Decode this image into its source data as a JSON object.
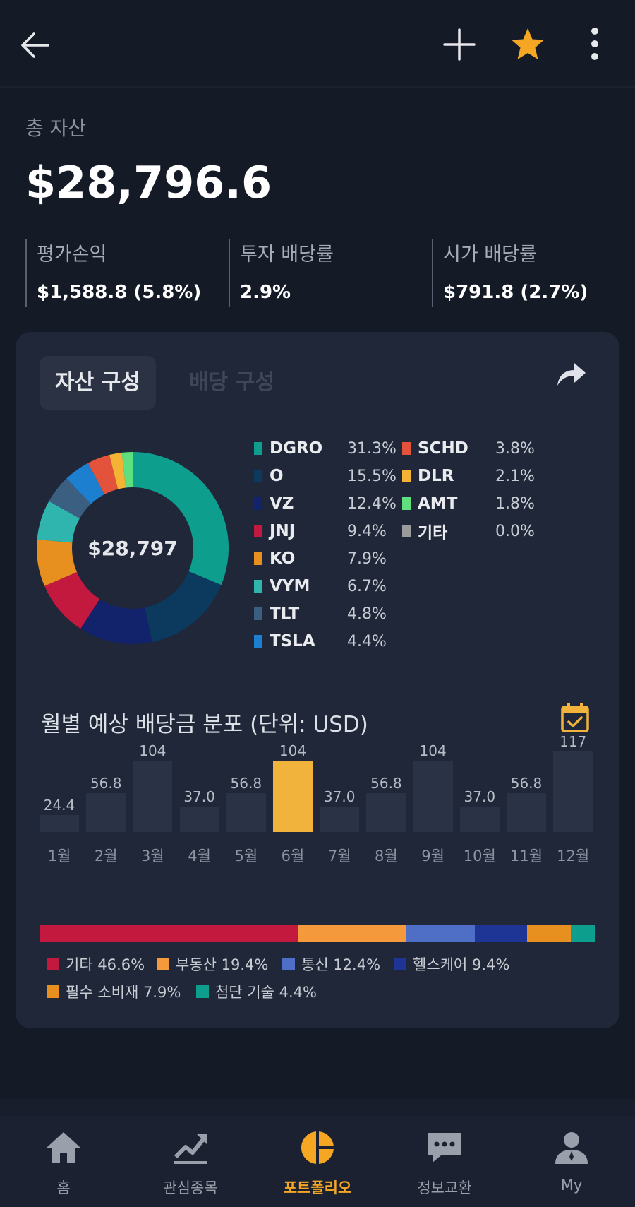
{
  "header": {
    "back_icon": "back-arrow-icon",
    "add_icon": "plus-icon",
    "favorite_icon": "star-icon",
    "more_icon": "more-vertical-icon",
    "star_color": "#f5a623"
  },
  "summary": {
    "total_label": "총 자산",
    "total_value": "$28,796.6",
    "metrics": [
      {
        "label": "평가손익",
        "value": "$1,588.8 (5.8%)"
      },
      {
        "label": "투자 배당률",
        "value": "2.9%"
      },
      {
        "label": "시가 배당률",
        "value": "$791.8 (2.7%)"
      }
    ]
  },
  "card": {
    "tabs": [
      {
        "label": "자산 구성",
        "active": true
      },
      {
        "label": "배당 구성",
        "active": false
      }
    ],
    "share_icon": "share-icon",
    "donut_center": "$28,797",
    "holdings": [
      {
        "name": "DGRO",
        "pct": "31.3%",
        "value": 31.3,
        "color": "#0d9e8e"
      },
      {
        "name": "O",
        "pct": "15.5%",
        "value": 15.5,
        "color": "#0b3a5e"
      },
      {
        "name": "VZ",
        "pct": "12.4%",
        "value": 12.4,
        "color": "#12226b"
      },
      {
        "name": "JNJ",
        "pct": "9.4%",
        "value": 9.4,
        "color": "#c4193f"
      },
      {
        "name": "KO",
        "pct": "7.9%",
        "value": 7.9,
        "color": "#e8901f"
      },
      {
        "name": "VYM",
        "pct": "6.7%",
        "value": 6.7,
        "color": "#2fb5ad"
      },
      {
        "name": "TLT",
        "pct": "4.8%",
        "value": 4.8,
        "color": "#3b5f80"
      },
      {
        "name": "TSLA",
        "pct": "4.4%",
        "value": 4.4,
        "color": "#1d7fd0"
      },
      {
        "name": "SCHD",
        "pct": "3.8%",
        "value": 3.8,
        "color": "#e3523a"
      },
      {
        "name": "DLR",
        "pct": "2.1%",
        "value": 2.1,
        "color": "#f4b334"
      },
      {
        "name": "AMT",
        "pct": "1.8%",
        "value": 1.8,
        "color": "#5ee07e"
      },
      {
        "name": "기타",
        "pct": "0.0%",
        "value": 0.0,
        "color": "#9b9b9b"
      }
    ]
  },
  "dividends": {
    "title": "월별 예상 배당금 분포 (단위: USD)",
    "calendar_icon": "calendar-check-icon",
    "highlight_color": "#f2b33c"
  },
  "chart_data": {
    "type": "bar",
    "categories": [
      "1월",
      "2월",
      "3월",
      "4월",
      "5월",
      "6월",
      "7월",
      "8월",
      "9월",
      "10월",
      "11월",
      "12월"
    ],
    "values": [
      24.4,
      56.8,
      104,
      37.0,
      56.8,
      104,
      37.0,
      56.8,
      104,
      37.0,
      56.8,
      117
    ],
    "labels": [
      "24.4",
      "56.8",
      "104",
      "37.0",
      "56.8",
      "104",
      "37.0",
      "56.8",
      "104",
      "37.0",
      "56.8",
      "117"
    ],
    "highlight_index": 5,
    "title": "",
    "ylim": [
      0,
      117
    ]
  },
  "sectors": [
    {
      "label": "기타 46.6%",
      "value": 46.6,
      "color": "#c4193f"
    },
    {
      "label": "부동산 19.4%",
      "value": 19.4,
      "color": "#f59a3c"
    },
    {
      "label": "통신 12.4%",
      "value": 12.4,
      "color": "#4f6fc6"
    },
    {
      "label": "헬스케어 9.4%",
      "value": 9.4,
      "color": "#1f3596"
    },
    {
      "label": "필수 소비재 7.9%",
      "value": 7.9,
      "color": "#e8901f"
    },
    {
      "label": "첨단 기술 4.4%",
      "value": 4.4,
      "color": "#0d9e8e"
    }
  ],
  "nav": [
    {
      "label": "홈",
      "icon": "home-icon",
      "active": false
    },
    {
      "label": "관심종목",
      "icon": "trending-chart-icon",
      "active": false
    },
    {
      "label": "포트폴리오",
      "icon": "pie-chart-icon",
      "active": true
    },
    {
      "label": "정보교환",
      "icon": "chat-bubble-icon",
      "active": false
    },
    {
      "label": "My",
      "icon": "user-icon",
      "active": false
    }
  ]
}
